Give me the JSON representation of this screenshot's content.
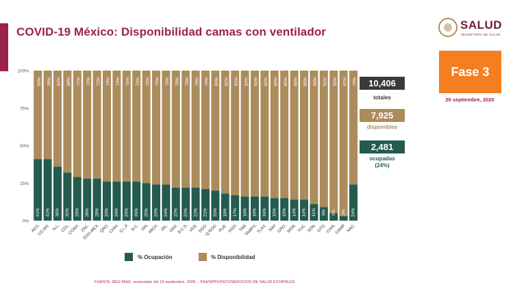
{
  "title": "COVID-19 México: Disponibilidad camas con ventilador",
  "logo": {
    "brand": "SALUD",
    "subtitle": "SECRETARÍA DE SALUD"
  },
  "phase": {
    "label": "Fase 3",
    "date": "20 septiembre, 2020"
  },
  "stats": {
    "total": {
      "value": "10,406",
      "label": "totales",
      "color": "#3a3a3a"
    },
    "available": {
      "value": "7,925",
      "label": "disponibles",
      "color": "#ac8b5c"
    },
    "occupied": {
      "value": "2,481",
      "label": "ocupadas",
      "pct": "(24%)",
      "color": "#235b4e"
    }
  },
  "legend": {
    "occupied": "% Ocupación",
    "available": "% Disponibilidad"
  },
  "colors": {
    "occupied": "#235b4e",
    "available": "#ac8b5c",
    "accent": "#9b2247",
    "phase": "#f47f20"
  },
  "footnote": "FUENTE: RED IRAG. acumulado del 19 septiembre, 2020. - SSA/SPPS/DGTI/SERVICIOS DE SALUD ESTATALES",
  "chart_data": {
    "type": "bar",
    "stacked": true,
    "ylim": [
      0,
      100
    ],
    "yticks": [
      "0%",
      "25%",
      "50%",
      "75%",
      "100%"
    ],
    "categories": [
      "AGS.",
      "CD.MX.",
      "N.L.",
      "COL.",
      "COAH.",
      "ZAC.",
      "EDO.MEX.",
      "QRO.",
      "CHIH.",
      "S.L.P.",
      "B.C.",
      "SIN.",
      "MICH.",
      "JAL.",
      "OAX.",
      "B.C.S.",
      "VER.",
      "DGO.",
      "Q.ROO.",
      "PUE.",
      "HGO.",
      "TAB.",
      "TAMPS.",
      "TLAX.",
      "NAY.",
      "GRO.",
      "MOR.",
      "YUC.",
      "SON.",
      "GTO.",
      "CHIS.",
      "CAMP.",
      "NAC."
    ],
    "series": [
      {
        "name": "% Ocupación",
        "values": [
          41,
          41,
          36,
          32,
          29,
          28,
          28,
          26,
          26,
          26,
          26,
          25,
          24,
          24,
          22,
          22,
          22,
          21,
          20,
          18,
          17,
          16,
          16,
          16,
          15,
          15,
          14,
          14,
          11,
          9,
          5,
          3,
          24
        ]
      },
      {
        "name": "% Disponibilidad",
        "values": [
          59,
          59,
          64,
          68,
          71,
          72,
          72,
          74,
          74,
          74,
          74,
          75,
          76,
          76,
          78,
          78,
          78,
          79,
          80,
          82,
          83,
          84,
          84,
          84,
          85,
          85,
          86,
          86,
          89,
          91,
          95,
          97,
          76
        ]
      }
    ]
  }
}
